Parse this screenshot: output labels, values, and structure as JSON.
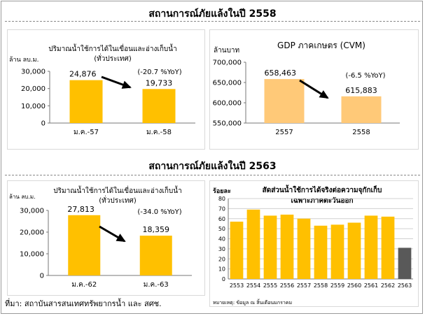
{
  "section1_title": "สถานการณ์ภัยแล้งในปี 2558",
  "section2_title": "สถานการณ์ภัยแล้งในปี 2563",
  "source_text": "ที่มา: สถาบันสารสนเทศทรัพยากรน้ำ และ สศช.",
  "colors": {
    "bar": "#FFC000",
    "bar_light": "#FFC978",
    "bar_dark": "#595959",
    "arrow": "#000000"
  },
  "chart_data": [
    {
      "id": "c1",
      "type": "bar",
      "title": "ปริมาณน้ำใช้การได้ในเขื่อนและอ่างเก็บน้ำ",
      "subtitle": "(ทั่วประเทศ)",
      "ylabel": "ล้าน ลบ.ม.",
      "categories": [
        "ม.ค.-57",
        "ม.ค.-58"
      ],
      "values": [
        24876,
        19733
      ],
      "value_labels": [
        "24,876",
        "19,733"
      ],
      "annotation": "(-20.7 %YoY)",
      "ylim": [
        0,
        30000
      ],
      "yticks": [
        "0",
        "10,000",
        "20,000",
        "30,000"
      ],
      "grid": false
    },
    {
      "id": "c2",
      "type": "bar",
      "title": "GDP ภาคเกษตร (CVM)",
      "ylabel": "ล้านบาท",
      "categories": [
        "2557",
        "2558"
      ],
      "values": [
        658463,
        615883
      ],
      "value_labels": [
        "658,463",
        "615,883"
      ],
      "annotation": "(-6.5 %YoY)",
      "ylim": [
        550000,
        700000
      ],
      "yticks": [
        "550,000",
        "600,000",
        "650,000",
        "700,000"
      ],
      "grid": false
    },
    {
      "id": "c3",
      "type": "bar",
      "title": "ปริมาณน้ำใช้การได้ในเขื่อนและอ่างเก็บน้ำ",
      "subtitle": "(ทั่วประเทศ)",
      "ylabel": "ล้าน ลบ.ม.",
      "categories": [
        "ม.ค.-62",
        "ม.ค.-63"
      ],
      "values": [
        27813,
        18359
      ],
      "value_labels": [
        "27,813",
        "18,359"
      ],
      "annotation": "(-34.0 %YoY)",
      "ylim": [
        0,
        30000
      ],
      "yticks": [
        "0",
        "10,000",
        "20,000",
        "30,000"
      ],
      "grid": false
    },
    {
      "id": "c4",
      "type": "bar",
      "title": "สัดส่วนน้ำใช้การได้จริงต่อความจุกักเก็บ",
      "subtitle": "เฉพาะภาคตะวันออก",
      "ylabel": "ร้อยละ",
      "categories": [
        "2553",
        "2554",
        "2555",
        "2556",
        "2557",
        "2558",
        "2559",
        "2560",
        "2561",
        "2562",
        "2563"
      ],
      "values": [
        57,
        69,
        63,
        64,
        60,
        53,
        54,
        56,
        63,
        62,
        31
      ],
      "ylim": [
        0,
        80
      ],
      "yticks": [
        "0",
        "10",
        "20",
        "30",
        "40",
        "50",
        "60",
        "70",
        "80"
      ],
      "note": "หมายเหตุ: ข้อมูล ณ สิ้นเดือนมกราคม",
      "grid": true
    }
  ]
}
